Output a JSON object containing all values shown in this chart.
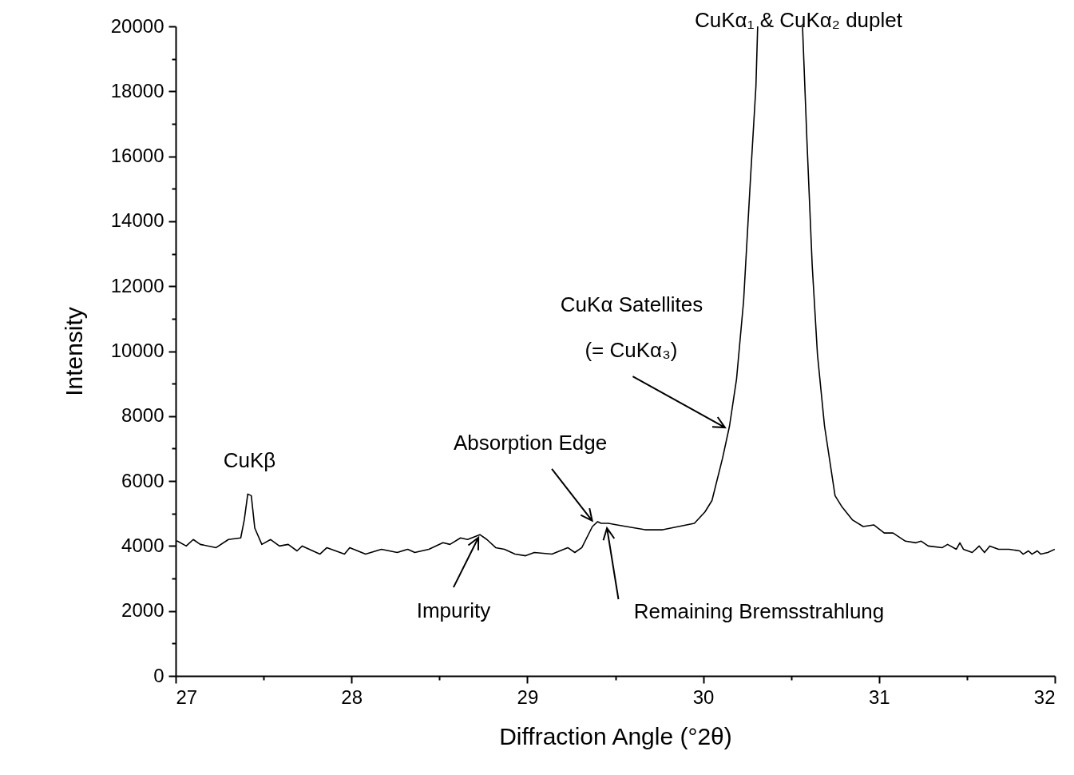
{
  "chart_data": {
    "type": "line",
    "xlabel": "Diffraction Angle (°2θ)",
    "ylabel": "Intensity",
    "xlim": [
      27,
      32
    ],
    "ylim": [
      0,
      20000
    ],
    "xticks": [
      27,
      {
        "value": 27.5,
        "label": null
      },
      28,
      {
        "value": 28.5,
        "label": null
      },
      29,
      {
        "value": 29.5,
        "label": null
      },
      30,
      {
        "value": 30.5,
        "label": null
      },
      31,
      {
        "value": 31.5,
        "label": null
      },
      32
    ],
    "yticks": [
      0,
      {
        "value": 1000,
        "label": null
      },
      2000,
      {
        "value": 3000,
        "label": null
      },
      4000,
      {
        "value": 5000,
        "label": null
      },
      6000,
      {
        "value": 7000,
        "label": null
      },
      8000,
      {
        "value": 9000,
        "label": null
      },
      10000,
      {
        "value": 11000,
        "label": null
      },
      12000,
      {
        "value": 13000,
        "label": null
      },
      14000,
      {
        "value": 15000,
        "label": null
      },
      16000,
      {
        "value": 17000,
        "label": null
      },
      18000,
      {
        "value": 19000,
        "label": null
      },
      20000
    ],
    "grid": false,
    "marker": "none",
    "line_style": "solid",
    "series": [
      {
        "color": "#000000",
        "x": [
          27.0,
          27.01,
          27.06,
          27.1,
          27.14,
          27.23,
          27.3,
          27.37,
          27.39,
          27.41,
          27.43,
          27.45,
          27.49,
          27.54,
          27.59,
          27.64,
          27.69,
          27.72,
          27.82,
          27.86,
          27.96,
          27.99,
          28.08,
          28.17,
          28.26,
          28.32,
          28.36,
          28.44,
          28.52,
          28.56,
          28.62,
          28.66,
          28.73,
          28.77,
          28.82,
          28.87,
          28.93,
          28.99,
          29.04,
          29.14,
          29.23,
          29.27,
          29.31,
          29.37,
          29.4,
          29.42,
          29.46,
          29.51,
          29.67,
          29.77,
          29.95,
          30.01,
          30.05,
          30.11,
          30.15,
          30.19,
          30.23,
          30.27,
          30.3,
          30.31,
          30.44,
          30.565,
          30.59,
          30.62,
          30.65,
          30.69,
          30.75,
          30.79,
          30.85,
          30.91,
          30.97,
          31.03,
          31.08,
          31.15,
          31.21,
          31.24,
          31.28,
          31.36,
          31.39,
          31.44,
          31.46,
          31.48,
          31.53,
          31.57,
          31.6,
          31.63,
          31.68,
          31.74,
          31.8,
          31.82,
          31.85,
          31.87,
          31.9,
          31.92,
          31.96,
          32.0
        ],
        "values": [
          4150,
          4150,
          4000,
          4200,
          4050,
          3950,
          4200,
          4250,
          4800,
          5600,
          5550,
          4550,
          4050,
          4200,
          4000,
          4050,
          3850,
          4000,
          3750,
          3950,
          3750,
          3950,
          3750,
          3900,
          3800,
          3900,
          3800,
          3900,
          4100,
          4050,
          4250,
          4200,
          4350,
          4200,
          3950,
          3900,
          3750,
          3700,
          3800,
          3750,
          3950,
          3800,
          3950,
          4600,
          4750,
          4700,
          4700,
          4650,
          4500,
          4500,
          4700,
          5050,
          5400,
          6700,
          7700,
          9150,
          11550,
          15400,
          18150,
          20000,
          null,
          20000,
          16500,
          12650,
          9900,
          7700,
          5550,
          5200,
          4800,
          4600,
          4650,
          4400,
          4400,
          4150,
          4100,
          4150,
          4000,
          3950,
          4050,
          3900,
          4100,
          3900,
          3800,
          4000,
          3800,
          4000,
          3900,
          3900,
          3850,
          3750,
          3850,
          3750,
          3850,
          3750,
          3800,
          3900
        ]
      }
    ],
    "annotations": [
      {
        "text": "CuKβ",
        "x": 27.42,
        "y": 5600
      },
      {
        "text": "Impurity",
        "x": 28.73,
        "y": 4350
      },
      {
        "text": "Absorption Edge",
        "x": 29.38,
        "y": 4700
      },
      {
        "text": "Remaining Bremsstrahlung",
        "x": 29.45,
        "y": 4650
      },
      "CuKα Satellites",
      {
        "text": "(= CuKα₃)",
        "x": 30.14,
        "y": 7600
      },
      "CuKα₁ & CuKα₂ duplet"
    ]
  }
}
